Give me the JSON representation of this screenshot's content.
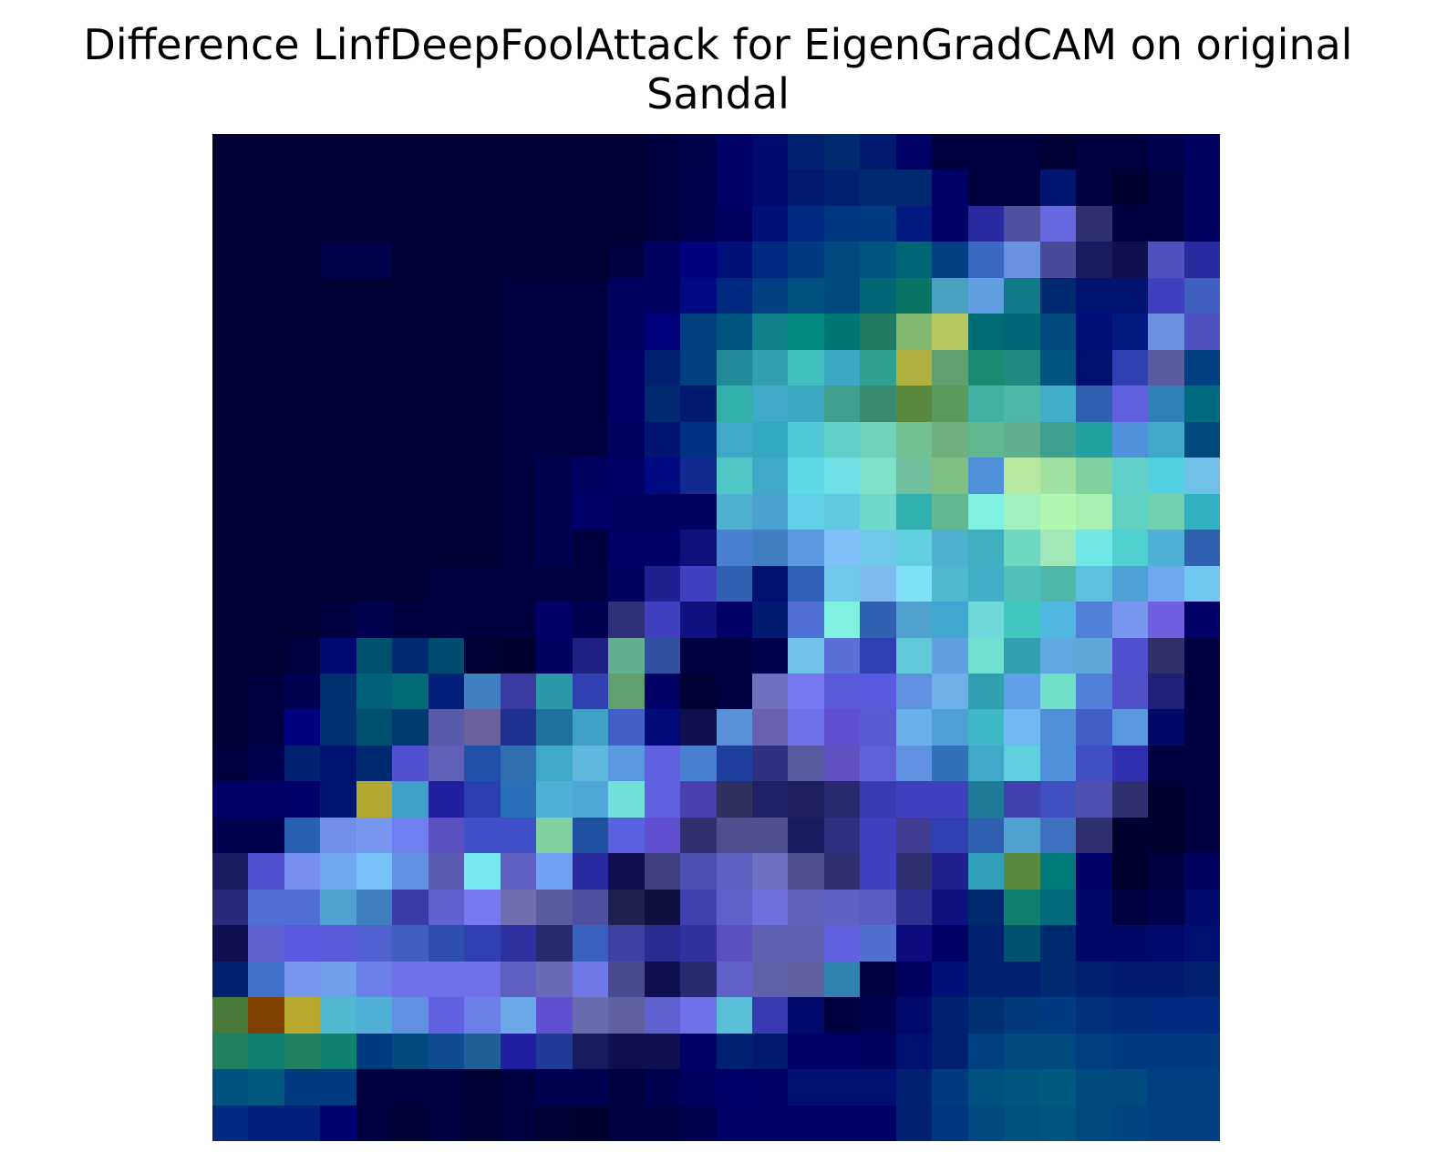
{
  "chart_data": {
    "type": "heatmap",
    "title_lines": [
      "Difference LinfDeepFoolAttack for EigenGradCAM on original",
      "Sandal"
    ],
    "rows": 28,
    "cols": 28,
    "xlabel": "",
    "ylabel": "",
    "axes_visible": false,
    "cells": [
      [
        "#000033",
        "#000033",
        "#000033",
        "#000033",
        "#000033",
        "#000033",
        "#000033",
        "#000033",
        "#000033",
        "#000033",
        "#000033",
        "#000033",
        "#000040",
        "#00004d",
        "#000066",
        "#000a6b",
        "#002070",
        "#002a70",
        "#001a70",
        "#000066",
        "#000040",
        "#000040",
        "#000040",
        "#000033",
        "#000040",
        "#000040",
        "#000050",
        "#000060"
      ],
      [
        "#000033",
        "#000033",
        "#000033",
        "#000033",
        "#000033",
        "#000033",
        "#000033",
        "#000033",
        "#000033",
        "#000033",
        "#000033",
        "#000033",
        "#000040",
        "#000050",
        "#000066",
        "#000a6b",
        "#001a70",
        "#002070",
        "#002a70",
        "#002a70",
        "#000066",
        "#000040",
        "#000040",
        "#001470",
        "#000040",
        "#000030",
        "#000040",
        "#000060"
      ],
      [
        "#000033",
        "#000033",
        "#000033",
        "#000033",
        "#000033",
        "#000033",
        "#000033",
        "#000033",
        "#000033",
        "#000033",
        "#000033",
        "#000033",
        "#000040",
        "#000050",
        "#000060",
        "#00107a",
        "#002a80",
        "#003580",
        "#003a80",
        "#001a80",
        "#000066",
        "#2a2aa0",
        "#5050a0",
        "#6a6ae0",
        "#303070",
        "#000040",
        "#000040",
        "#000060"
      ],
      [
        "#000033",
        "#000033",
        "#000033",
        "#00004d",
        "#00004d",
        "#000033",
        "#000033",
        "#000033",
        "#000033",
        "#000033",
        "#000033",
        "#000040",
        "#000060",
        "#000080",
        "#00107a",
        "#002a80",
        "#003a80",
        "#004a80",
        "#005580",
        "#006575",
        "#004080",
        "#3a6ac0",
        "#6a90e0",
        "#4a4a9a",
        "#1a1a60",
        "#101050",
        "#5050c0",
        "#2a2aa0"
      ],
      [
        "#000033",
        "#000033",
        "#000033",
        "#000033",
        "#000033",
        "#000033",
        "#000033",
        "#000033",
        "#000040",
        "#000040",
        "#000040",
        "#000060",
        "#000060",
        "#000a80",
        "#002a80",
        "#004080",
        "#005080",
        "#004a80",
        "#006575",
        "#0a7565",
        "#4aa0c0",
        "#60a0e0",
        "#107a8a",
        "#002a70",
        "#001470",
        "#001470",
        "#4040c0",
        "#4060c0"
      ],
      [
        "#000033",
        "#000033",
        "#000033",
        "#000033",
        "#000033",
        "#000033",
        "#000033",
        "#000033",
        "#000040",
        "#000040",
        "#000040",
        "#000060",
        "#00007a",
        "#004080",
        "#005580",
        "#10808a",
        "#008a80",
        "#007575",
        "#207a60",
        "#80b870",
        "#b8c860",
        "#006a75",
        "#006575",
        "#004a80",
        "#00107a",
        "#001a80",
        "#6a90e0",
        "#5050c0"
      ],
      [
        "#000033",
        "#000033",
        "#000033",
        "#000033",
        "#000033",
        "#000033",
        "#000033",
        "#000033",
        "#000040",
        "#000040",
        "#000040",
        "#000066",
        "#002070",
        "#004080",
        "#208a98",
        "#30a0b0",
        "#40c0c0",
        "#3aa8c0",
        "#30a090",
        "#b0b040",
        "#60a070",
        "#1a8a70",
        "#208a80",
        "#005580",
        "#001070",
        "#3040b0",
        "#5a5aa0",
        "#004080"
      ],
      [
        "#000033",
        "#000033",
        "#000033",
        "#000033",
        "#000033",
        "#000033",
        "#000033",
        "#000033",
        "#000040",
        "#000040",
        "#000040",
        "#000066",
        "#002a70",
        "#001a70",
        "#30b0a8",
        "#40a8c8",
        "#3aa8c0",
        "#40a090",
        "#3a8a70",
        "#5a8a40",
        "#5a9a5a",
        "#40b0a0",
        "#50b8a8",
        "#40b0c8",
        "#3060b0",
        "#6060e0",
        "#3080b8",
        "#006a80"
      ],
      [
        "#000033",
        "#000033",
        "#000033",
        "#000033",
        "#000033",
        "#000033",
        "#000033",
        "#000033",
        "#000040",
        "#000040",
        "#000040",
        "#000060",
        "#001470",
        "#003080",
        "#40a8c8",
        "#30a8c0",
        "#50c8d8",
        "#60d0c8",
        "#70d0b8",
        "#70c090",
        "#70b080",
        "#60b890",
        "#60b090",
        "#40a090",
        "#20a0a0",
        "#5090d8",
        "#40a8c8",
        "#004a80"
      ],
      [
        "#000033",
        "#000033",
        "#000033",
        "#000033",
        "#000033",
        "#000033",
        "#000033",
        "#000033",
        "#000040",
        "#000050",
        "#000060",
        "#000066",
        "#000a80",
        "#102a90",
        "#50c8c8",
        "#40a8c8",
        "#60d8e8",
        "#70e0e8",
        "#80e0c8",
        "#70c0a0",
        "#80c080",
        "#5090d8",
        "#b8e8a0",
        "#a0e0a0",
        "#80d0a0",
        "#60d0c8",
        "#50d0e0",
        "#70c0e8"
      ],
      [
        "#000033",
        "#000033",
        "#000033",
        "#000033",
        "#000033",
        "#000033",
        "#000033",
        "#000033",
        "#000040",
        "#000050",
        "#000066",
        "#000060",
        "#000060",
        "#000060",
        "#50b0d0",
        "#4aa0d0",
        "#60d0e8",
        "#60c8e0",
        "#70d8c8",
        "#30b0b0",
        "#60b890",
        "#80f0e0",
        "#a0f0c0",
        "#b0f8b0",
        "#a8f0b0",
        "#60d0c0",
        "#70d0b0",
        "#30b0c0"
      ],
      [
        "#000033",
        "#000033",
        "#000033",
        "#000033",
        "#000033",
        "#000033",
        "#000033",
        "#000033",
        "#000040",
        "#000050",
        "#000040",
        "#000066",
        "#000066",
        "#10107a",
        "#4a80d0",
        "#4080c0",
        "#5a98e0",
        "#80c0f8",
        "#70c8e8",
        "#60d0e0",
        "#50b0d0",
        "#40b0c0",
        "#70d8c0",
        "#a0e8b8",
        "#70e8e8",
        "#50d0d0",
        "#50b0d8",
        "#3060b0"
      ],
      [
        "#000033",
        "#000033",
        "#000033",
        "#000033",
        "#000033",
        "#000033",
        "#000040",
        "#000040",
        "#000040",
        "#000040",
        "#000040",
        "#000060",
        "#202090",
        "#4040c0",
        "#3060b0",
        "#001070",
        "#3060b8",
        "#70c8e8",
        "#80b8f0",
        "#80e0f8",
        "#50b8d0",
        "#40b0c8",
        "#50c0b8",
        "#50b8a8",
        "#60c0e0",
        "#50a0d8",
        "#70a8f0",
        "#70c8f0"
      ],
      [
        "#000033",
        "#000033",
        "#000033",
        "#000040",
        "#000050",
        "#000040",
        "#000040",
        "#000040",
        "#000040",
        "#000066",
        "#000050",
        "#30307a",
        "#4040c0",
        "#101080",
        "#000066",
        "#001a70",
        "#5070d8",
        "#80f0e0",
        "#3060b0",
        "#50a0d0",
        "#40a8d0",
        "#70d8d8",
        "#40c8c0",
        "#50b8e0",
        "#5080d8",
        "#7898f0",
        "#7060e0",
        "#000066"
      ],
      [
        "#000033",
        "#000033",
        "#000040",
        "#000a70",
        "#005070",
        "#002a70",
        "#004a70",
        "#000033",
        "#000030",
        "#000060",
        "#202080",
        "#60b090",
        "#3050a0",
        "#000040",
        "#000040",
        "#000050",
        "#70c0e8",
        "#5a70d8",
        "#3040b0",
        "#60c8d8",
        "#60a0e0",
        "#70e0d0",
        "#30a0b0",
        "#60a8e0",
        "#60a8d8",
        "#5050d0",
        "#30306a",
        "#000040"
      ],
      [
        "#000033",
        "#000040",
        "#000050",
        "#003070",
        "#00607a",
        "#006a75",
        "#00207a",
        "#4080c0",
        "#3a3aa0",
        "#2a98a8",
        "#3040b0",
        "#60a070",
        "#000066",
        "#000033",
        "#000040",
        "#7070c0",
        "#7878f0",
        "#5a5ad8",
        "#5a5ae0",
        "#6090e0",
        "#70b0e8",
        "#30a0b0",
        "#60a0e8",
        "#70e0c8",
        "#5080d8",
        "#5050c8",
        "#202078",
        "#000040"
      ],
      [
        "#000033",
        "#000040",
        "#000080",
        "#003070",
        "#005070",
        "#003a70",
        "#5a5aaa",
        "#6a60a0",
        "#203090",
        "#2070a0",
        "#40a0c8",
        "#4060c8",
        "#000a7a",
        "#101050",
        "#5a90d8",
        "#6a60b0",
        "#7070e8",
        "#6050d0",
        "#5a5ad0",
        "#6ab0e8",
        "#50a0d8",
        "#40b8c8",
        "#70b8f0",
        "#5090d8",
        "#4060c8",
        "#5a98e0",
        "#000a66",
        "#000040"
      ],
      [
        "#000040",
        "#000050",
        "#002070",
        "#001470",
        "#002a70",
        "#5050d0",
        "#6060b8",
        "#2050a8",
        "#3070b0",
        "#40a8c8",
        "#60b8e0",
        "#5a98e0",
        "#6060e0",
        "#4a80d0",
        "#2040a0",
        "#303080",
        "#5a5aa0",
        "#6050c0",
        "#6060d8",
        "#6090e0",
        "#3070b8",
        "#40a8c8",
        "#60d0e0",
        "#5090d8",
        "#4050c0",
        "#3030b0",
        "#000040",
        "#000040"
      ],
      [
        "#000066",
        "#000066",
        "#00006a",
        "#001470",
        "#b0a830",
        "#40a0c8",
        "#2020a0",
        "#2a40b0",
        "#2a70b8",
        "#50b0d8",
        "#50a8d8",
        "#70e0d8",
        "#6060e0",
        "#4a40b0",
        "#303060",
        "#202068",
        "#202060",
        "#2a2a70",
        "#3a3ab0",
        "#4040c0",
        "#4040c0",
        "#207a98",
        "#4040b0",
        "#4050c0",
        "#5050b0",
        "#303070",
        "#000030",
        "#000040"
      ],
      [
        "#000050",
        "#000050",
        "#2a60b0",
        "#7090e8",
        "#7898f0",
        "#7080f0",
        "#5a50c0",
        "#4050c8",
        "#4050c8",
        "#80d0a0",
        "#2050a0",
        "#5a60e0",
        "#6050d0",
        "#303070",
        "#505090",
        "#505090",
        "#1a1a60",
        "#303080",
        "#4040c0",
        "#403a90",
        "#3040b0",
        "#3060b0",
        "#50a0d0",
        "#4070c0",
        "#303070",
        "#000030",
        "#000030",
        "#000040"
      ],
      [
        "#1a1a60",
        "#5050d0",
        "#7890f0",
        "#70a8f0",
        "#78c0f8",
        "#6090e0",
        "#5a5ab0",
        "#78e8f0",
        "#6060c0",
        "#70a0f0",
        "#2a2aa0",
        "#101050",
        "#404080",
        "#5050b0",
        "#6060c0",
        "#7070c0",
        "#505090",
        "#303070",
        "#4040c0",
        "#303070",
        "#202090",
        "#30a0b8",
        "#5a8a40",
        "#007a7a",
        "#000066",
        "#000030",
        "#000040",
        "#000060"
      ],
      [
        "#2a2a7a",
        "#5070d8",
        "#5070d8",
        "#50a0d0",
        "#4080c0",
        "#3a3aa8",
        "#6060d0",
        "#7878f0",
        "#7070b0",
        "#5a5aa0",
        "#5050a0",
        "#202050",
        "#101040",
        "#4040b0",
        "#6060c8",
        "#7070e0",
        "#6060b8",
        "#6060c0",
        "#5a5ac0",
        "#303090",
        "#101080",
        "#002a70",
        "#108070",
        "#006a7a",
        "#000a66",
        "#000040",
        "#00004d",
        "#000a6a"
      ],
      [
        "#101050",
        "#6060d0",
        "#5a5ae0",
        "#5a5ad8",
        "#5060d0",
        "#4060c0",
        "#3050b0",
        "#3040b0",
        "#3030a0",
        "#2a2a70",
        "#3a60c0",
        "#4040a0",
        "#2a2a90",
        "#3030a0",
        "#5a50c0",
        "#6060b0",
        "#6060b0",
        "#6060e0",
        "#5070d0",
        "#100a80",
        "#000066",
        "#002070",
        "#005070",
        "#002a70",
        "#000a66",
        "#000a66",
        "#000a6a",
        "#001070"
      ],
      [
        "#002070",
        "#4070c8",
        "#7898f0",
        "#70a0e8",
        "#6a80e8",
        "#7070e8",
        "#7070e8",
        "#7070e8",
        "#6060c0",
        "#6a6ab8",
        "#7078e8",
        "#4a4a90",
        "#101050",
        "#2a2a70",
        "#6060c8",
        "#6060a8",
        "#6060a0",
        "#3080b0",
        "#000040",
        "#000060",
        "#00107a",
        "#002070",
        "#002070",
        "#002a70",
        "#002070",
        "#001a70",
        "#001a70",
        "#002070"
      ],
      [
        "#4a7a3a",
        "#804000",
        "#b8a830",
        "#50b8d0",
        "#50b0d8",
        "#6090e0",
        "#6060e0",
        "#6a80e8",
        "#6aa8e8",
        "#6050d0",
        "#6a6ab0",
        "#6060a0",
        "#6060d0",
        "#7070e8",
        "#5ac0d8",
        "#3a3ab0",
        "#000a6a",
        "#000040",
        "#000050",
        "#000a6a",
        "#002070",
        "#003070",
        "#003a7a",
        "#003a80",
        "#00307a",
        "#002a7a",
        "#002a80",
        "#002a80"
      ],
      [
        "#208060",
        "#108070",
        "#208060",
        "#108070",
        "#003a80",
        "#004a80",
        "#104a90",
        "#206098",
        "#2020a0",
        "#203a98",
        "#1a1a60",
        "#101050",
        "#101050",
        "#000066",
        "#002070",
        "#001a70",
        "#000066",
        "#000066",
        "#000060",
        "#001070",
        "#002070",
        "#004080",
        "#004a80",
        "#004a80",
        "#004080",
        "#003a80",
        "#003a80",
        "#003a80"
      ],
      [
        "#005080",
        "#005a80",
        "#003a80",
        "#003a80",
        "#000040",
        "#000040",
        "#000040",
        "#000033",
        "#000040",
        "#000050",
        "#000050",
        "#000040",
        "#000050",
        "#000060",
        "#00006a",
        "#000066",
        "#001070",
        "#001070",
        "#001070",
        "#002070",
        "#003a80",
        "#005080",
        "#005580",
        "#005a80",
        "#004a80",
        "#004a80",
        "#004080",
        "#004080"
      ],
      [
        "#002a80",
        "#00207a",
        "#00207a",
        "#000070",
        "#000040",
        "#000033",
        "#000040",
        "#000033",
        "#000040",
        "#000033",
        "#000030",
        "#000040",
        "#000040",
        "#000050",
        "#000066",
        "#000066",
        "#000066",
        "#000066",
        "#000066",
        "#002070",
        "#003580",
        "#004a80",
        "#005080",
        "#005580",
        "#004a80",
        "#004580",
        "#004080",
        "#004080"
      ]
    ]
  }
}
